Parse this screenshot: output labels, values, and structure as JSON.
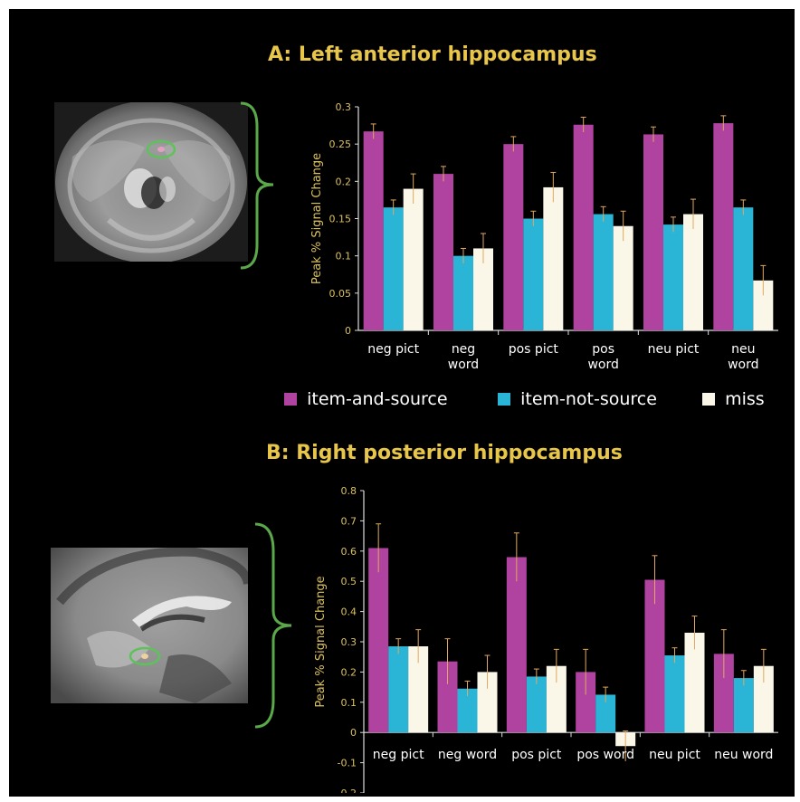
{
  "panels": [
    {
      "id": "A",
      "title": "A: Left anterior hippocampus"
    },
    {
      "id": "B",
      "title": "B:  Right posterior hippocampus"
    }
  ],
  "colors": {
    "background": "#000000",
    "title": "#e8c64a",
    "axis_text": "#d9c060",
    "item_and_source": "#b043a0",
    "item_not_source": "#2ab4d6",
    "miss": "#fbf7e8",
    "error_bar": "#e0a860",
    "brace": "#5aa84a",
    "roi": "#5ec25a"
  },
  "legend": [
    {
      "label": "item-and-source",
      "color": "#b043a0"
    },
    {
      "label": "item-not-source",
      "color": "#2ab4d6"
    },
    {
      "label": "miss",
      "color": "#fbf7e8"
    }
  ],
  "chart_data": [
    {
      "type": "bar",
      "title": "A: Left anterior hippocampus",
      "ylabel": "Peak % Signal Change",
      "xlabel": "",
      "ylim": [
        0,
        0.3
      ],
      "yticks": [
        "0",
        "0.05",
        "0.1",
        "0.15",
        "0.2",
        "0.25",
        "0.3"
      ],
      "categories": [
        [
          "neg pict"
        ],
        [
          "neg",
          "word"
        ],
        [
          "pos pict"
        ],
        [
          "pos",
          "word"
        ],
        [
          "neu pict"
        ],
        [
          "neu",
          "word"
        ]
      ],
      "series": [
        {
          "name": "item-and-source",
          "values": [
            0.267,
            0.21,
            0.25,
            0.276,
            0.263,
            0.278
          ],
          "errors": [
            0.01,
            0.01,
            0.01,
            0.01,
            0.01,
            0.01
          ]
        },
        {
          "name": "item-not-source",
          "values": [
            0.165,
            0.1,
            0.15,
            0.156,
            0.142,
            0.165
          ],
          "errors": [
            0.01,
            0.01,
            0.01,
            0.01,
            0.01,
            0.01
          ]
        },
        {
          "name": "miss",
          "values": [
            0.19,
            0.11,
            0.192,
            0.14,
            0.156,
            0.067
          ],
          "errors": [
            0.02,
            0.02,
            0.02,
            0.02,
            0.02,
            0.02
          ]
        }
      ],
      "grid": false,
      "legend": "bottom"
    },
    {
      "type": "bar",
      "title": "B:  Right posterior hippocampus",
      "ylabel": "Peak % Signal Change",
      "xlabel": "",
      "ylim": [
        -0.2,
        0.8
      ],
      "yticks": [
        "-0.2",
        "-0.1",
        "0",
        "0.1",
        "0.2",
        "0.3",
        "0.4",
        "0.5",
        "0.6",
        "0.7",
        "0.8"
      ],
      "categories": [
        [
          "neg pict"
        ],
        [
          "neg word"
        ],
        [
          "pos pict"
        ],
        [
          "pos word"
        ],
        [
          "neu pict"
        ],
        [
          "neu word"
        ]
      ],
      "series": [
        {
          "name": "item-and-source",
          "values": [
            0.61,
            0.235,
            0.58,
            0.2,
            0.505,
            0.26
          ],
          "errors": [
            0.08,
            0.075,
            0.08,
            0.075,
            0.08,
            0.08
          ]
        },
        {
          "name": "item-not-source",
          "values": [
            0.285,
            0.145,
            0.185,
            0.125,
            0.255,
            0.18
          ],
          "errors": [
            0.025,
            0.025,
            0.025,
            0.025,
            0.025,
            0.025
          ]
        },
        {
          "name": "miss",
          "values": [
            0.285,
            0.2,
            0.22,
            -0.045,
            0.33,
            0.22
          ],
          "errors": [
            0.055,
            0.055,
            0.055,
            0.05,
            0.055,
            0.055
          ]
        }
      ],
      "grid": false,
      "legend": "none"
    }
  ]
}
